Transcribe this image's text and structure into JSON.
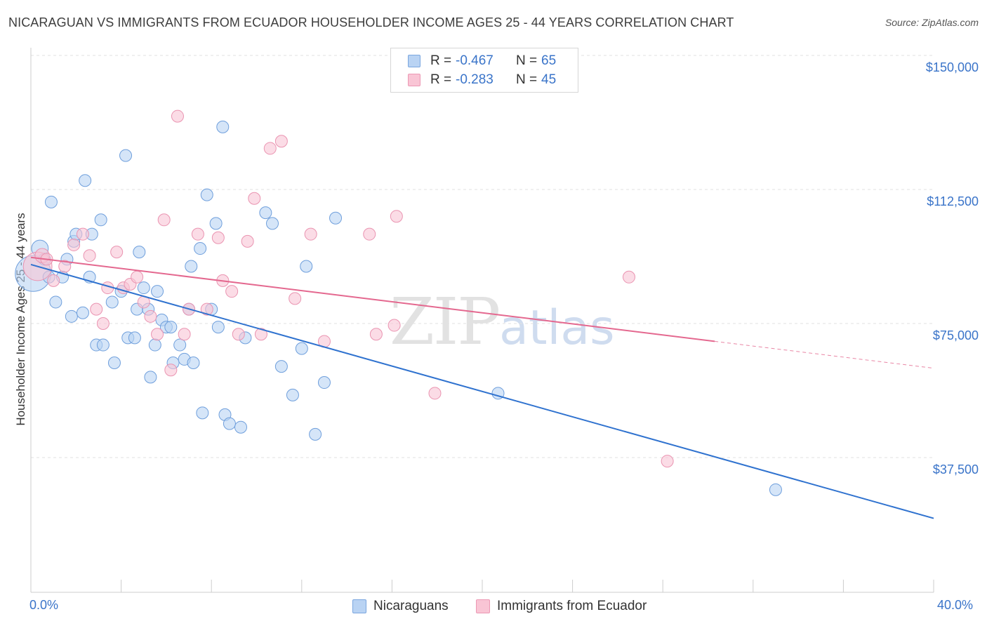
{
  "title": "NICARAGUAN VS IMMIGRANTS FROM ECUADOR HOUSEHOLDER INCOME AGES 25 - 44 YEARS CORRELATION CHART",
  "source": "Source: ZipAtlas.com",
  "watermark": {
    "zip": "ZIP",
    "atlas": "atlas"
  },
  "legend": {
    "rows": [
      {
        "r_label": "R =",
        "r_value": "-0.467",
        "n_label": "N =",
        "n_value": "65",
        "fill": "#b9d3f3",
        "stroke": "#7aa6df"
      },
      {
        "r_label": "R =",
        "r_value": "-0.283",
        "n_label": "N =",
        "n_value": "45",
        "fill": "#f9c5d5",
        "stroke": "#ec98b4"
      }
    ]
  },
  "bottom_legend": [
    "Nicaraguans",
    "Immigrants from Ecuador"
  ],
  "colors": {
    "blue_fill": "#b9d3f3",
    "blue_stroke": "#6f9fdc",
    "blue_line": "#2f72cf",
    "pink_fill": "#f9c5d5",
    "pink_stroke": "#ea94b1",
    "pink_line": "#e4688f",
    "grid": "#e2e2e2",
    "axis_text": "#3a74c9"
  },
  "chart_data": {
    "type": "scatter",
    "title": "NICARAGUAN VS IMMIGRANTS FROM ECUADOR HOUSEHOLDER INCOME AGES 25 - 44 YEARS CORRELATION CHART",
    "xlabel": "",
    "ylabel": "Householder Income Ages 25 - 44 years",
    "xlim": [
      0,
      40
    ],
    "ylim": [
      0,
      152500
    ],
    "x_tick_labels": [
      "0.0%",
      "40.0%"
    ],
    "y_ticks": [
      37500,
      75000,
      112500,
      150000
    ],
    "y_tick_labels": [
      "$37,500",
      "$75,000",
      "$112,500",
      "$150,000"
    ],
    "grid": true,
    "legend_position": "top-center",
    "series": [
      {
        "name": "Nicaraguans",
        "points": [
          [
            0.1,
            89000,
            3
          ],
          [
            0.4,
            96000,
            1.4
          ],
          [
            0.6,
            93000,
            1
          ],
          [
            0.8,
            88000,
            1
          ],
          [
            0.9,
            109000,
            1
          ],
          [
            1.1,
            81000,
            1
          ],
          [
            1.4,
            88000,
            1
          ],
          [
            1.6,
            93000,
            1
          ],
          [
            1.8,
            77000,
            1
          ],
          [
            1.9,
            98000,
            1
          ],
          [
            2.0,
            100000,
            1
          ],
          [
            2.3,
            78000,
            1
          ],
          [
            2.4,
            115000,
            1
          ],
          [
            2.6,
            88000,
            1
          ],
          [
            2.7,
            100000,
            1
          ],
          [
            2.9,
            69000,
            1
          ],
          [
            3.1,
            104000,
            1
          ],
          [
            3.2,
            69000,
            1
          ],
          [
            3.6,
            81000,
            1
          ],
          [
            3.7,
            64000,
            1
          ],
          [
            4.0,
            84000,
            1
          ],
          [
            4.2,
            122000,
            1
          ],
          [
            4.3,
            71000,
            1
          ],
          [
            4.6,
            71000,
            1
          ],
          [
            4.7,
            79000,
            1
          ],
          [
            4.8,
            95000,
            1
          ],
          [
            5.0,
            85000,
            1
          ],
          [
            5.2,
            79000,
            1
          ],
          [
            5.3,
            60000,
            1
          ],
          [
            5.5,
            69000,
            1
          ],
          [
            5.6,
            84000,
            1
          ],
          [
            5.8,
            76000,
            1
          ],
          [
            6.0,
            74000,
            1
          ],
          [
            6.2,
            74000,
            1
          ],
          [
            6.3,
            64000,
            1
          ],
          [
            6.6,
            69000,
            1
          ],
          [
            6.8,
            65000,
            1
          ],
          [
            7.0,
            79000,
            1
          ],
          [
            7.1,
            91000,
            1
          ],
          [
            7.2,
            64000,
            1
          ],
          [
            7.5,
            96000,
            1
          ],
          [
            7.6,
            50000,
            1
          ],
          [
            7.8,
            111000,
            1
          ],
          [
            8.0,
            79000,
            1
          ],
          [
            8.2,
            103000,
            1
          ],
          [
            8.3,
            74000,
            1
          ],
          [
            8.5,
            130000,
            1
          ],
          [
            8.6,
            49500,
            1
          ],
          [
            8.8,
            47000,
            1
          ],
          [
            9.3,
            46000,
            1
          ],
          [
            9.5,
            71000,
            1
          ],
          [
            10.4,
            106000,
            1
          ],
          [
            10.7,
            103000,
            1
          ],
          [
            11.1,
            63000,
            1
          ],
          [
            11.6,
            55000,
            1
          ],
          [
            12.0,
            68000,
            1
          ],
          [
            12.2,
            91000,
            1
          ],
          [
            12.6,
            44000,
            1
          ],
          [
            13.0,
            58500,
            1
          ],
          [
            13.5,
            104500,
            1
          ],
          [
            20.7,
            55500,
            1
          ],
          [
            33.0,
            28500,
            1
          ]
        ]
      },
      {
        "name": "Immigrants from Ecuador",
        "points": [
          [
            0.3,
            91000,
            2.4
          ],
          [
            0.5,
            94000,
            1.2
          ],
          [
            0.7,
            93000,
            1
          ],
          [
            1.0,
            87000,
            1
          ],
          [
            1.5,
            91000,
            1
          ],
          [
            1.9,
            97000,
            1
          ],
          [
            2.3,
            100000,
            1
          ],
          [
            2.6,
            94000,
            1
          ],
          [
            2.9,
            79000,
            1
          ],
          [
            3.2,
            75000,
            1
          ],
          [
            3.4,
            85000,
            1
          ],
          [
            3.8,
            95000,
            1
          ],
          [
            4.1,
            85000,
            1
          ],
          [
            4.4,
            86000,
            1
          ],
          [
            4.7,
            88000,
            1
          ],
          [
            5.0,
            81000,
            1
          ],
          [
            5.3,
            77000,
            1
          ],
          [
            5.6,
            72000,
            1
          ],
          [
            5.9,
            104000,
            1
          ],
          [
            6.2,
            62000,
            1
          ],
          [
            6.5,
            133000,
            1
          ],
          [
            6.8,
            72000,
            1
          ],
          [
            7.0,
            79000,
            1
          ],
          [
            7.4,
            100000,
            1
          ],
          [
            7.8,
            79000,
            1
          ],
          [
            8.3,
            99000,
            1
          ],
          [
            8.5,
            87000,
            1
          ],
          [
            8.9,
            84000,
            1
          ],
          [
            9.2,
            72000,
            1
          ],
          [
            9.6,
            98000,
            1
          ],
          [
            9.9,
            110000,
            1
          ],
          [
            10.2,
            72000,
            1
          ],
          [
            10.6,
            124000,
            1
          ],
          [
            11.1,
            126000,
            1
          ],
          [
            11.7,
            82000,
            1
          ],
          [
            12.4,
            100000,
            1
          ],
          [
            13.0,
            70000,
            1
          ],
          [
            15.0,
            100000,
            1
          ],
          [
            15.3,
            72000,
            1
          ],
          [
            16.1,
            74500,
            1
          ],
          [
            16.2,
            105000,
            1
          ],
          [
            17.9,
            55500,
            1
          ],
          [
            26.5,
            88000,
            1
          ],
          [
            28.2,
            36500,
            1
          ]
        ]
      }
    ],
    "trend_lines": [
      {
        "series": "Nicaraguans",
        "x": [
          0,
          40
        ],
        "y": [
          91500,
          20500
        ],
        "dashed_from_x": null
      },
      {
        "series": "Immigrants from Ecuador",
        "x": [
          0,
          40
        ],
        "y": [
          93500,
          62500
        ],
        "dashed_from_x": 30.3
      }
    ]
  }
}
